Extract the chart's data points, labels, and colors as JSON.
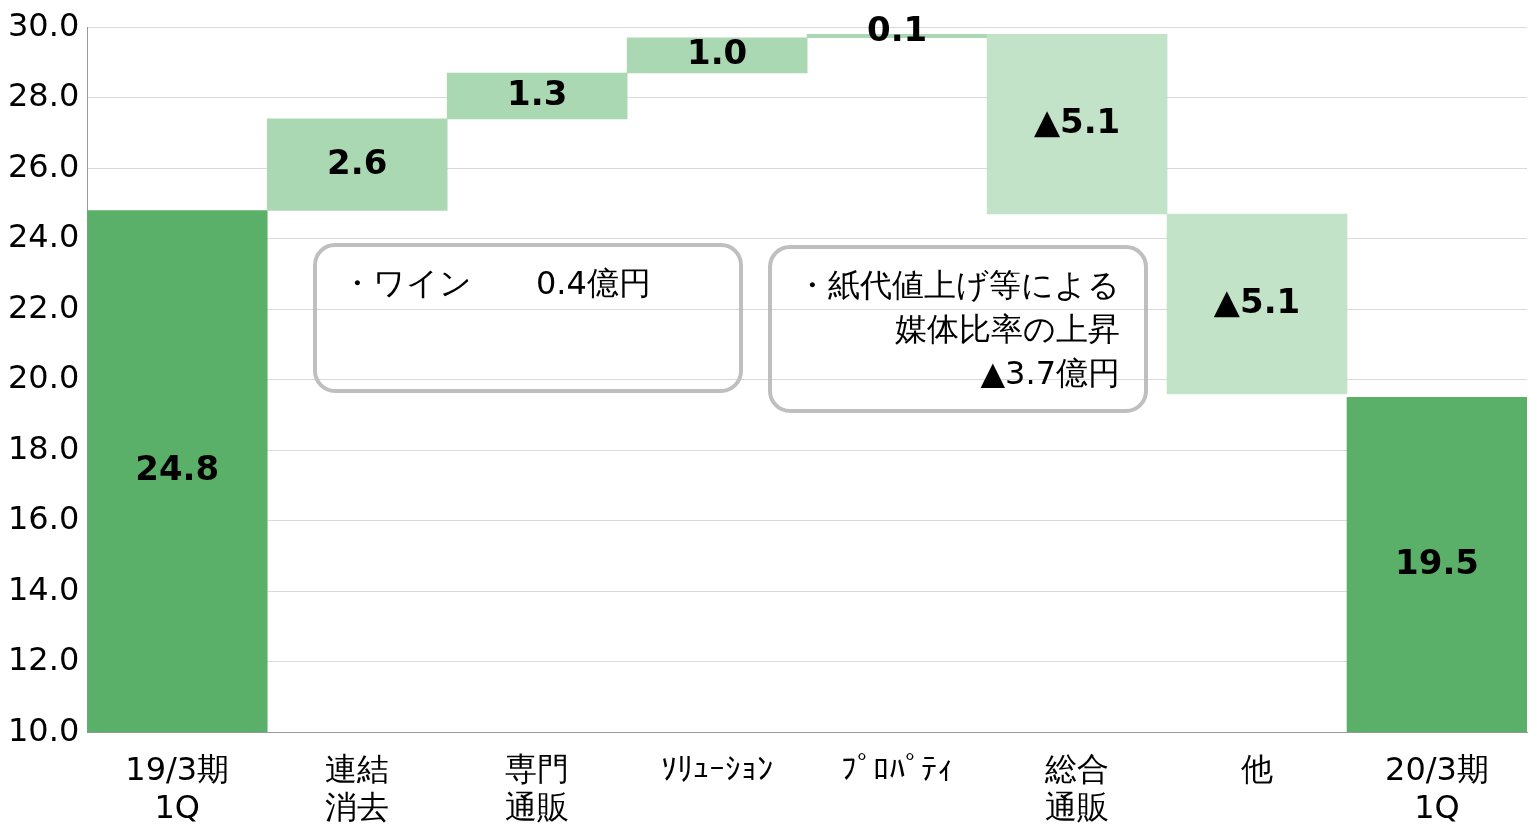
{
  "chart_data": {
    "type": "bar",
    "categories": [
      "19/3期\n1Q",
      "連結消去",
      "専門通販",
      "ｿﾘｭｰｼｮﾝ",
      "ﾌﾟﾛﾊﾟﾃｨ",
      "総合通販",
      "他",
      "20/3期\n1Q"
    ],
    "values": [
      24.8,
      2.6,
      1.3,
      1.0,
      0.1,
      -5.1,
      -5.1,
      19.5
    ],
    "base": [
      null,
      24.8,
      27.4,
      28.7,
      29.7,
      29.8,
      24.7,
      null
    ],
    "colors": [
      "#5aaf69",
      "#a9d8b2",
      "#a9d8b2",
      "#a9d8b2",
      "#a9d8b2",
      "#c3e3c8",
      "#c3e3c8",
      "#5aaf69"
    ],
    "value_labels": [
      "24.8",
      "2.6",
      "1.3",
      "1.0",
      "0.1",
      "▲5.1",
      "▲5.1",
      "19.5"
    ],
    "ylim": [
      10,
      30
    ],
    "yticks": [
      {
        "value": 10,
        "label": "10.0"
      },
      {
        "value": 12,
        "label": "12.0"
      },
      {
        "value": 14,
        "label": "14.0"
      },
      {
        "value": 16,
        "label": "16.0"
      },
      {
        "value": 18,
        "label": "18.0"
      },
      {
        "value": 20,
        "label": "20.0"
      },
      {
        "value": 22,
        "label": "22.0"
      },
      {
        "value": 24,
        "label": "24.0"
      },
      {
        "value": 26,
        "label": "26.0"
      },
      {
        "value": 28,
        "label": "28.0"
      },
      {
        "value": 30,
        "label": "30.0"
      }
    ],
    "grid": "y",
    "legend": false,
    "annotations": [
      "・ワイン　　0.4億円",
      "・紙代値上げ等による媒体比率の上昇\n▲3.7億円"
    ]
  }
}
